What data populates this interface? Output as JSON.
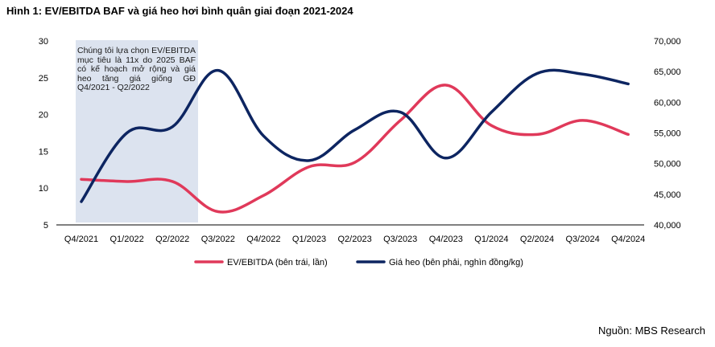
{
  "title": "Hình 1: EV/EBITDA BAF và giá heo hơi bình quân giai đoạn 2021-2024",
  "source": "Nguồn: MBS Research",
  "annotation": "Chúng tôi lựa chọn EV/EBITDA mục tiêu là 11x do 2025 BAF có kế hoạch mở rộng và giá heo tăng giá giống GĐ Q4/2021 - Q2/2022",
  "colors": {
    "ev_ebitda": "#e0395a",
    "gia_heo": "#0d2561",
    "highlight": "#dce3ef"
  },
  "chart_data": {
    "type": "line",
    "categories": [
      "Q4/2021",
      "Q1/2022",
      "Q2/2022",
      "Q3/2022",
      "Q4/2022",
      "Q1/2023",
      "Q2/2023",
      "Q3/2023",
      "Q4/2023",
      "Q1/2024",
      "Q2/2024",
      "Q3/2024",
      "Q4/2024"
    ],
    "series": [
      {
        "name": "EV/EBITDA (bên trái, lần)",
        "axis": "left",
        "values": [
          11.2,
          10.9,
          10.9,
          6.8,
          9.0,
          12.9,
          13.5,
          19.2,
          24.0,
          18.5,
          17.3,
          19.2,
          17.3
        ]
      },
      {
        "name": "Giá heo (bên phải, nghìn đồng/kg)",
        "axis": "right",
        "values": [
          43800,
          55000,
          56000,
          65200,
          54500,
          50500,
          55500,
          58400,
          50900,
          58400,
          64700,
          64600,
          63000
        ]
      }
    ],
    "y_left": {
      "min": 5,
      "max": 30,
      "ticks": [
        "5",
        "10",
        "15",
        "20",
        "25",
        "30"
      ]
    },
    "y_right": {
      "min": 40000,
      "max": 70000,
      "ticks": [
        "40,000",
        "45,000",
        "50,000",
        "55,000",
        "60,000",
        "65,000",
        "70,000"
      ]
    },
    "highlight_range": [
      "Q4/2021",
      "Q2/2022"
    ],
    "legend_position": "bottom",
    "grid": false
  }
}
